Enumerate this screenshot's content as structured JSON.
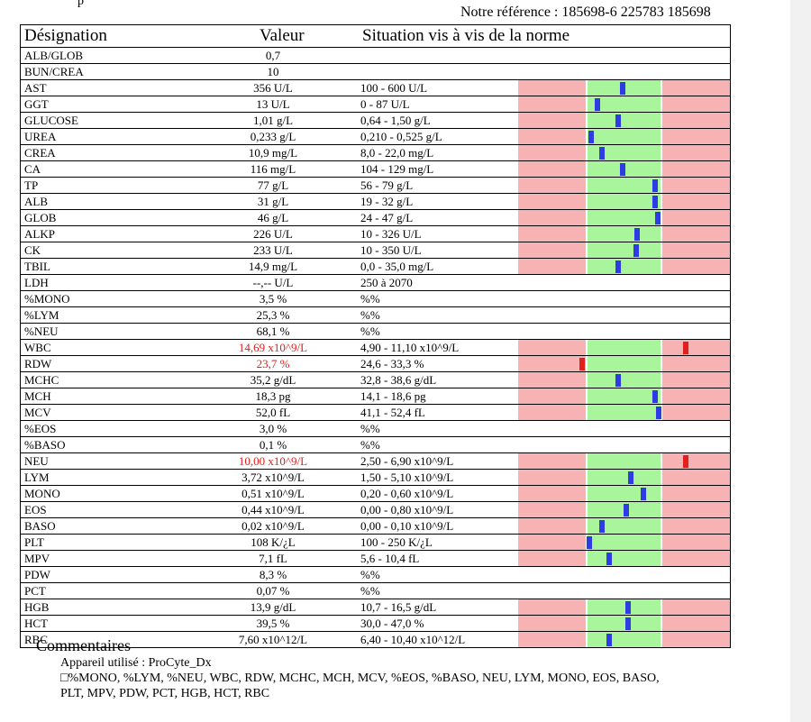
{
  "header": {
    "top_stub": "p",
    "reference": "Notre référence : 185698-6 225783 185698"
  },
  "table": {
    "col_designation": "Désignation",
    "col_value": "Valeur",
    "col_situation": "Situation vis à vis de la norme"
  },
  "rows": [
    {
      "name": "ALB/GLOB",
      "value": "0,7",
      "norm": ""
    },
    {
      "name": "BUN/CREA",
      "value": "10",
      "norm": ""
    },
    {
      "name": "AST",
      "value": "356 U/L",
      "norm": "100 - 600 U/L",
      "marker": 0.48
    },
    {
      "name": "GGT",
      "value": "13 U/L",
      "norm": "0 - 87 U/L",
      "marker": 0.14
    },
    {
      "name": "GLUCOSE",
      "value": "1,01 g/L",
      "norm": "0,64 - 1,50 g/L",
      "marker": 0.42
    },
    {
      "name": "UREA",
      "value": "0,233 g/L",
      "norm": "0,210 - 0,525 g/L",
      "marker": 0.06
    },
    {
      "name": "CREA",
      "value": "10,9 mg/L",
      "norm": "8,0 - 22,0 mg/L",
      "marker": 0.2
    },
    {
      "name": "CA",
      "value": "116 mg/L",
      "norm": "104 - 129 mg/L",
      "marker": 0.48
    },
    {
      "name": "TP",
      "value": "77 g/L",
      "norm": "56 - 79 g/L",
      "marker": 0.91
    },
    {
      "name": "ALB",
      "value": "31 g/L",
      "norm": "19 - 32 g/L",
      "marker": 0.92
    },
    {
      "name": "GLOB",
      "value": "46 g/L",
      "norm": "24 - 47 g/L",
      "marker": 0.95
    },
    {
      "name": "ALKP",
      "value": "226 U/L",
      "norm": "10 - 326 U/L",
      "marker": 0.68
    },
    {
      "name": "CK",
      "value": "233 U/L",
      "norm": "10 - 350 U/L",
      "marker": 0.66
    },
    {
      "name": "TBIL",
      "value": "14,9 mg/L",
      "norm": "0,0 - 35,0 mg/L",
      "marker": 0.42
    },
    {
      "name": "LDH",
      "value": "--,-- U/L",
      "norm": "250 à 2070"
    },
    {
      "name": "%MONO",
      "value": "3,5 %",
      "norm": "%%"
    },
    {
      "name": "%LYM",
      "value": "25,3 %",
      "norm": "%%"
    },
    {
      "name": "%NEU",
      "value": "68,1 %",
      "norm": "%%"
    },
    {
      "name": "WBC",
      "value": "14,69 x10^9/L",
      "norm": "4,90 - 11,10 x10^9/L",
      "marker": 1.33,
      "alert": true
    },
    {
      "name": "RDW",
      "value": "23,7 %",
      "norm": "24,6 - 33,3 %",
      "marker": -0.06,
      "alert": true
    },
    {
      "name": "MCHC",
      "value": "35,2 g/dL",
      "norm": "32,8 - 38,6 g/dL",
      "marker": 0.42
    },
    {
      "name": "MCH",
      "value": "18,3 pg",
      "norm": "14,1 - 18,6 pg",
      "marker": 0.92
    },
    {
      "name": "MCV",
      "value": "52,0 fL",
      "norm": "41,1 - 52,4 fL",
      "marker": 0.96
    },
    {
      "name": "%EOS",
      "value": "3,0 %",
      "norm": "%%"
    },
    {
      "name": "%BASO",
      "value": "0,1 %",
      "norm": "%%"
    },
    {
      "name": "NEU",
      "value": "10,00 x10^9/L",
      "norm": "2,50 - 6,90 x10^9/L",
      "marker": 1.33,
      "alert": true
    },
    {
      "name": "LYM",
      "value": "3,72 x10^9/L",
      "norm": "1,50 - 5,10 x10^9/L",
      "marker": 0.59
    },
    {
      "name": "MONO",
      "value": "0,51 x10^9/L",
      "norm": "0,20 - 0,60 x10^9/L",
      "marker": 0.76
    },
    {
      "name": "EOS",
      "value": "0,44 x10^9/L",
      "norm": "0,00 - 0,80 x10^9/L",
      "marker": 0.53
    },
    {
      "name": "BASO",
      "value": "0,02 x10^9/L",
      "norm": "0,00 - 0,10 x10^9/L",
      "marker": 0.2
    },
    {
      "name": "PLT",
      "value": "108 K/¿L",
      "norm": "100 - 250 K/¿L",
      "marker": 0.04
    },
    {
      "name": "MPV",
      "value": "7,1 fL",
      "norm": "5,6 - 10,4 fL",
      "marker": 0.3
    },
    {
      "name": "PDW",
      "value": "8,3 %",
      "norm": "%%"
    },
    {
      "name": "PCT",
      "value": "0,07 %",
      "norm": "%%"
    },
    {
      "name": "HGB",
      "value": "13,9 g/dL",
      "norm": "10,7 - 16,5 g/dL",
      "marker": 0.55
    },
    {
      "name": "HCT",
      "value": "39,5 %",
      "norm": "30,0 - 47,0 %",
      "marker": 0.55
    },
    {
      "name": "RBC",
      "value": "7,60 x10^12/L",
      "norm": "6,40 - 10,40 x10^12/L",
      "marker": 0.3
    }
  ],
  "comments": {
    "title": "Commentaires",
    "device": "Appareil utilisé : ProCyte_Dx",
    "line1": "□%MONO, %LYM, %NEU, WBC, RDW, MCHC, MCH, MCV, %EOS, %BASO, NEU, LYM, MONO, EOS, BASO,",
    "line2": "PLT, MPV, PDW, PCT, HGB, HCT, RBC"
  },
  "colors": {
    "out_of_range": "#f7b3b3",
    "in_range": "#a8f59b",
    "marker_normal": "#2f3be3",
    "marker_alert": "#e0201e",
    "alert_text": "#e0201e"
  }
}
